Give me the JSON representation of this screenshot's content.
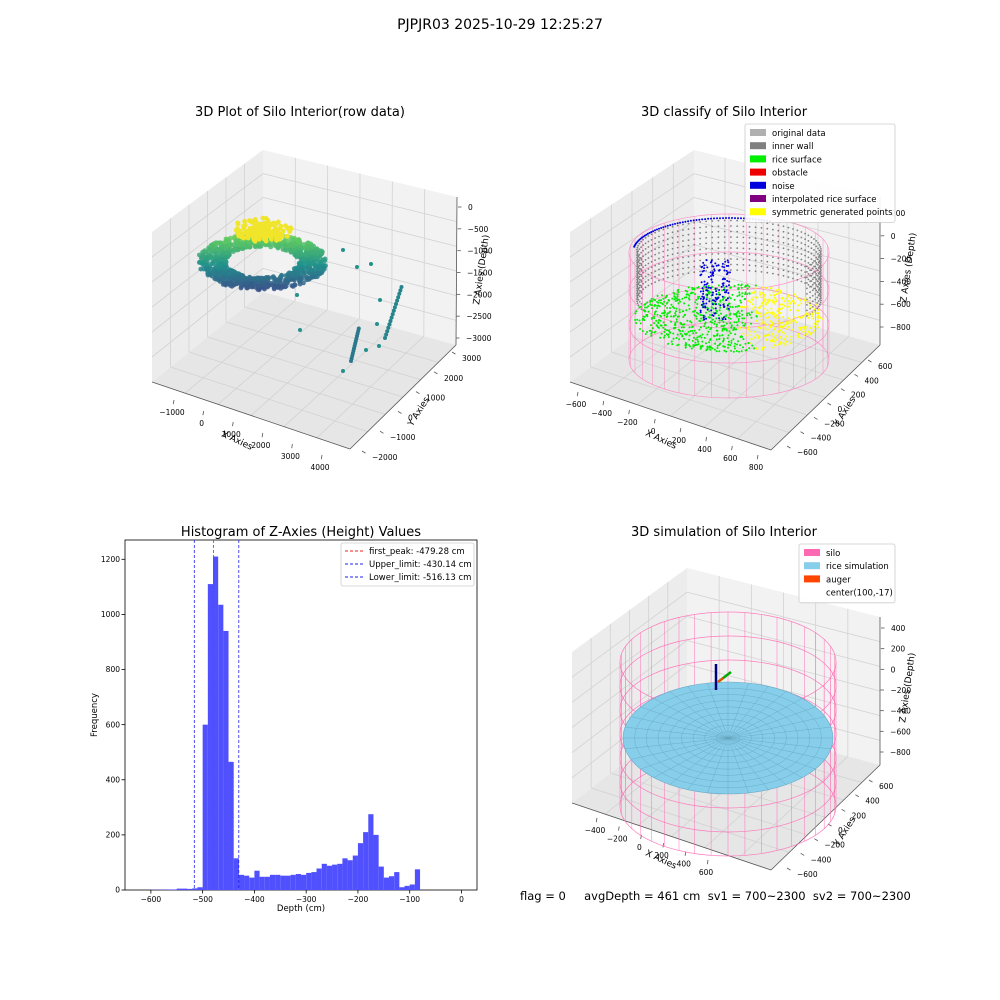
{
  "figure": {
    "suptitle": "PJPJR03 2025-10-29 12:25:27",
    "status_line": "flag = 0     avgDepth = 461 cm  sv1 = 700~2300  sv2 = 700~2300"
  },
  "chart_data": [
    {
      "type": "scatter",
      "projection": "3d",
      "title": "3D Plot of Silo Interior(row data)",
      "xlabel": "X Axies",
      "ylabel": "Y Axies",
      "zlabel": "Z Axies (Depth)",
      "x_ticks": [
        "−1000",
        "0",
        "1000",
        "2000",
        "3000",
        "4000"
      ],
      "y_ticks": [
        "−2000",
        "−1000",
        "0",
        "1000",
        "2000",
        "3000"
      ],
      "z_ticks": [
        "0",
        "−500",
        "−1000",
        "−1500",
        "−2000",
        "−2500",
        "−3000"
      ],
      "xlim": [
        -1500,
        4500
      ],
      "ylim": [
        -2000,
        3000
      ],
      "zlim": [
        -3000,
        0
      ],
      "colormap": "viridis",
      "grid": true
    },
    {
      "type": "scatter",
      "projection": "3d",
      "title": "3D classify of Silo Interior",
      "xlabel": "X Axies",
      "ylabel": "Y Axies",
      "zlabel": "Z Axies (Depth)",
      "x_ticks": [
        "−600",
        "−400",
        "−200",
        "0",
        "200",
        "400",
        "600",
        "800"
      ],
      "y_ticks": [
        "−600",
        "−400",
        "−200",
        "0",
        "200",
        "400",
        "600"
      ],
      "z_ticks": [
        "200",
        "0",
        "−200",
        "−400",
        "−600",
        "−800"
      ],
      "legend_position": "top-right",
      "legend": [
        {
          "label": "original data",
          "color": "#b0b0b0"
        },
        {
          "label": "inner wall",
          "color": "#808080"
        },
        {
          "label": "rice surface",
          "color": "#00ee00"
        },
        {
          "label": "obstacle",
          "color": "#ee0000"
        },
        {
          "label": "noise",
          "color": "#0000dd"
        },
        {
          "label": "interpolated rice surface",
          "color": "#800080"
        },
        {
          "label": "symmetric generated points",
          "color": "#ffff00"
        }
      ],
      "grid": true
    },
    {
      "type": "bar",
      "title": "Histogram of Z-Axies (Height) Values",
      "xlabel": "Depth (cm)",
      "ylabel": "Frequency",
      "xlim": [
        -650,
        30
      ],
      "ylim": [
        0,
        1270
      ],
      "x_ticks": [
        -600,
        -500,
        -400,
        -300,
        -200,
        -100,
        0
      ],
      "y_ticks": [
        0,
        200,
        400,
        600,
        800,
        1000,
        1200
      ],
      "bin_width": 10,
      "bins": [
        {
          "x": -600,
          "v": 1
        },
        {
          "x": -590,
          "v": 1
        },
        {
          "x": -580,
          "v": 1
        },
        {
          "x": -570,
          "v": 2
        },
        {
          "x": -560,
          "v": 2
        },
        {
          "x": -550,
          "v": 5
        },
        {
          "x": -540,
          "v": 5
        },
        {
          "x": -530,
          "v": 4
        },
        {
          "x": -520,
          "v": 6
        },
        {
          "x": -510,
          "v": 10
        },
        {
          "x": -500,
          "v": 600
        },
        {
          "x": -490,
          "v": 1110
        },
        {
          "x": -480,
          "v": 1210
        },
        {
          "x": -470,
          "v": 1035
        },
        {
          "x": -460,
          "v": 940
        },
        {
          "x": -450,
          "v": 465
        },
        {
          "x": -440,
          "v": 115
        },
        {
          "x": -430,
          "v": 55
        },
        {
          "x": -420,
          "v": 52
        },
        {
          "x": -410,
          "v": 45
        },
        {
          "x": -400,
          "v": 70
        },
        {
          "x": -390,
          "v": 48
        },
        {
          "x": -380,
          "v": 48
        },
        {
          "x": -370,
          "v": 55
        },
        {
          "x": -360,
          "v": 55
        },
        {
          "x": -350,
          "v": 52
        },
        {
          "x": -340,
          "v": 52
        },
        {
          "x": -330,
          "v": 55
        },
        {
          "x": -320,
          "v": 58
        },
        {
          "x": -310,
          "v": 55
        },
        {
          "x": -300,
          "v": 62
        },
        {
          "x": -290,
          "v": 65
        },
        {
          "x": -280,
          "v": 78
        },
        {
          "x": -270,
          "v": 95
        },
        {
          "x": -260,
          "v": 88
        },
        {
          "x": -250,
          "v": 92
        },
        {
          "x": -240,
          "v": 95
        },
        {
          "x": -230,
          "v": 115
        },
        {
          "x": -220,
          "v": 108
        },
        {
          "x": -210,
          "v": 125
        },
        {
          "x": -200,
          "v": 170
        },
        {
          "x": -190,
          "v": 210
        },
        {
          "x": -180,
          "v": 275
        },
        {
          "x": -170,
          "v": 200
        },
        {
          "x": -160,
          "v": 85
        },
        {
          "x": -150,
          "v": 45
        },
        {
          "x": -140,
          "v": 50
        },
        {
          "x": -130,
          "v": 65
        },
        {
          "x": -120,
          "v": 10
        },
        {
          "x": -110,
          "v": 15
        },
        {
          "x": -100,
          "v": 20
        },
        {
          "x": -90,
          "v": 75
        }
      ],
      "color": "#5050ff",
      "vlines": [
        {
          "label": "first_peak: -479.28 cm",
          "x": -479.28,
          "color": "#ee2222"
        },
        {
          "label": "Upper_limit: -430.14 cm",
          "x": -430.14,
          "color": "#2222ee"
        },
        {
          "label": "Lower_limit: -516.13 cm",
          "x": -516.13,
          "color": "#2222ee"
        }
      ],
      "legend_position": "top-right"
    },
    {
      "type": "scatter",
      "projection": "3d",
      "title": "3D simulation of Silo Interior",
      "xlabel": "X Axies",
      "ylabel": "Y Axies",
      "zlabel": "Z Axies (Depth)",
      "x_ticks": [
        "−400",
        "−200",
        "0",
        "200",
        "400",
        "600"
      ],
      "y_ticks": [
        "−600",
        "−400",
        "−200",
        "0",
        "200",
        "400",
        "600"
      ],
      "z_ticks": [
        "400",
        "200",
        "0",
        "−200",
        "−400",
        "−600",
        "−800"
      ],
      "legend_position": "top-right",
      "legend": [
        {
          "label": "silo",
          "color": "#ff69b4"
        },
        {
          "label": "rice simulation",
          "color": "#87ceeb"
        },
        {
          "label": "auger",
          "color": "#ff4500"
        },
        {
          "label": "center(100,-17)",
          "color": ""
        }
      ],
      "grid": true
    }
  ]
}
